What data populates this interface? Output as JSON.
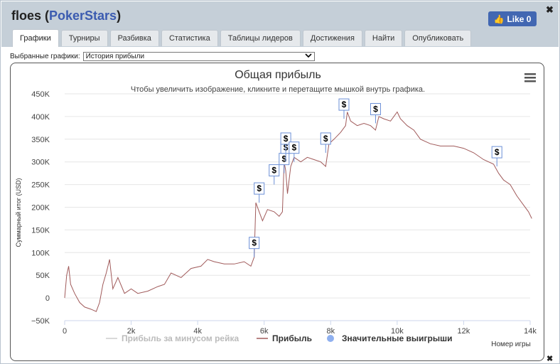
{
  "window": {
    "player": "floes",
    "site": "PokerStars",
    "like_label": "Like 0",
    "close": "✖"
  },
  "tabs": [
    "Графики",
    "Турниры",
    "Разбивка",
    "Статистика",
    "Таблицы лидеров",
    "Достижения",
    "Найти",
    "Опубликовать"
  ],
  "selector": {
    "label": "Выбранные графики:",
    "value": "История прибыли"
  },
  "chart_data": {
    "type": "line",
    "title": "Общая прибыль",
    "subtitle": "Чтобы увеличить изображение, кликните и перетащите мышкой внутрь графика.",
    "ylabel": "Суммарный итог (USD)",
    "xlabel": "Номер игры",
    "xlim": [
      0,
      14000
    ],
    "ylim": [
      -50000,
      450000
    ],
    "x_ticks": [
      "0",
      "2k",
      "4k",
      "6k",
      "8k",
      "10k",
      "12k",
      "14k"
    ],
    "y_ticks": [
      "−50K",
      "0",
      "50K",
      "100K",
      "150K",
      "200K",
      "250K",
      "300K",
      "350K",
      "400K",
      "450K"
    ],
    "legend": [
      "Прибыль за минусом рейка",
      "Прибыль",
      "Значительные выигрыши"
    ],
    "legend_position": "bottom",
    "grid": "horizontal",
    "series": [
      {
        "name": "Прибыль",
        "color": "#a05a5a",
        "points": [
          [
            0,
            0
          ],
          [
            60,
            50000
          ],
          [
            120,
            70000
          ],
          [
            180,
            30000
          ],
          [
            300,
            10000
          ],
          [
            450,
            -10000
          ],
          [
            600,
            -20000
          ],
          [
            800,
            -25000
          ],
          [
            950,
            -30000
          ],
          [
            1050,
            -10000
          ],
          [
            1150,
            30000
          ],
          [
            1250,
            55000
          ],
          [
            1350,
            85000
          ],
          [
            1450,
            20000
          ],
          [
            1600,
            45000
          ],
          [
            1800,
            10000
          ],
          [
            2000,
            20000
          ],
          [
            2200,
            10000
          ],
          [
            2500,
            15000
          ],
          [
            2800,
            25000
          ],
          [
            3000,
            30000
          ],
          [
            3200,
            55000
          ],
          [
            3500,
            45000
          ],
          [
            3800,
            65000
          ],
          [
            4100,
            70000
          ],
          [
            4300,
            85000
          ],
          [
            4500,
            80000
          ],
          [
            4800,
            75000
          ],
          [
            5100,
            75000
          ],
          [
            5400,
            80000
          ],
          [
            5600,
            70000
          ],
          [
            5700,
            90000
          ],
          [
            5750,
            210000
          ],
          [
            5850,
            190000
          ],
          [
            5950,
            170000
          ],
          [
            6100,
            195000
          ],
          [
            6300,
            190000
          ],
          [
            6450,
            180000
          ],
          [
            6550,
            190000
          ],
          [
            6600,
            300000
          ],
          [
            6650,
            280000
          ],
          [
            6700,
            230000
          ],
          [
            6800,
            290000
          ],
          [
            6900,
            310000
          ],
          [
            7100,
            300000
          ],
          [
            7300,
            310000
          ],
          [
            7500,
            305000
          ],
          [
            7700,
            300000
          ],
          [
            7850,
            290000
          ],
          [
            7950,
            340000
          ],
          [
            8100,
            350000
          ],
          [
            8300,
            365000
          ],
          [
            8450,
            380000
          ],
          [
            8500,
            410000
          ],
          [
            8600,
            390000
          ],
          [
            8800,
            380000
          ],
          [
            9000,
            385000
          ],
          [
            9200,
            380000
          ],
          [
            9350,
            370000
          ],
          [
            9450,
            400000
          ],
          [
            9600,
            395000
          ],
          [
            9800,
            390000
          ],
          [
            10000,
            410000
          ],
          [
            10100,
            395000
          ],
          [
            10300,
            380000
          ],
          [
            10500,
            370000
          ],
          [
            10700,
            350000
          ],
          [
            11000,
            340000
          ],
          [
            11300,
            335000
          ],
          [
            11700,
            335000
          ],
          [
            12000,
            330000
          ],
          [
            12300,
            320000
          ],
          [
            12600,
            305000
          ],
          [
            12900,
            295000
          ],
          [
            13050,
            275000
          ],
          [
            13200,
            260000
          ],
          [
            13400,
            250000
          ],
          [
            13600,
            225000
          ],
          [
            13800,
            205000
          ],
          [
            13950,
            190000
          ],
          [
            14050,
            175000
          ]
        ]
      }
    ],
    "markers": [
      [
        5700,
        90000
      ],
      [
        5850,
        210000
      ],
      [
        6300,
        250000
      ],
      [
        6600,
        275000
      ],
      [
        6650,
        300000
      ],
      [
        6650,
        320000
      ],
      [
        6900,
        300000
      ],
      [
        7850,
        320000
      ],
      [
        8400,
        395000
      ],
      [
        9350,
        385000
      ],
      [
        13000,
        290000
      ]
    ]
  }
}
